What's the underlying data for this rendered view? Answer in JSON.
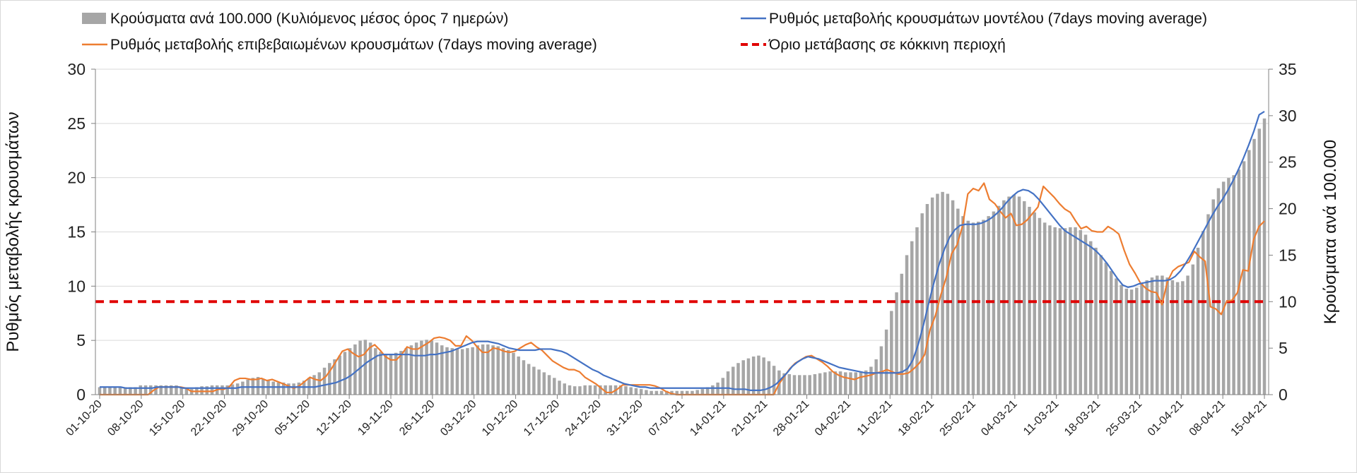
{
  "chart_data": {
    "type": "bar+line",
    "title": "",
    "xlabel": "",
    "ylabel_left": "Ρυθμός μεταβολής κρουσμάτων",
    "ylabel_right": "Κρούσματα ανά 100.000",
    "ylim_left": [
      0,
      30
    ],
    "ylim_right": [
      0,
      35
    ],
    "yticks_left": [
      "0",
      "5",
      "10",
      "15",
      "20",
      "25",
      "30"
    ],
    "yticks_right": [
      "0",
      "5",
      "10",
      "15",
      "20",
      "25",
      "30",
      "35"
    ],
    "grid": "horizontal",
    "legend_position": "top",
    "x_start": "01-10-20",
    "x_end": "15-04-21",
    "x_tick_labels": [
      "01-10-20",
      "08-10-20",
      "15-10-20",
      "22-10-20",
      "29-10-20",
      "05-11-20",
      "12-11-20",
      "19-11-20",
      "26-11-20",
      "03-12-20",
      "10-12-20",
      "17-12-20",
      "24-12-20",
      "31-12-20",
      "07-01-21",
      "14-01-21",
      "21-01-21",
      "28-01-21",
      "04-02-21",
      "11-02-21",
      "18-02-21",
      "25-02-21",
      "04-03-21",
      "11-03-21",
      "18-03-21",
      "25-03-21",
      "01-04-21",
      "08-04-21",
      "15-04-21"
    ],
    "series": [
      {
        "name": "Κρούσματα ανά 100.000 (Κυλιόμενος μέσος όρος 7 ημερών)",
        "kind": "bar",
        "axis": "right",
        "color": "#a6a6a6",
        "values": [
          0.8,
          0.8,
          0.8,
          0.8,
          0.8,
          0.8,
          0.8,
          0.8,
          1.0,
          1.0,
          1.0,
          1.0,
          1.0,
          1.0,
          1.0,
          1.0,
          0.7,
          0.7,
          0.6,
          0.8,
          0.9,
          0.9,
          1.0,
          1.0,
          1.0,
          1.0,
          1.1,
          1.2,
          1.4,
          1.6,
          1.8,
          1.9,
          1.7,
          1.5,
          1.4,
          1.3,
          1.3,
          1.2,
          1.2,
          1.3,
          1.5,
          1.8,
          2.1,
          2.4,
          2.9,
          3.4,
          3.8,
          4.2,
          4.6,
          5.0,
          5.4,
          5.8,
          5.9,
          5.6,
          5.0,
          4.6,
          4.4,
          4.4,
          4.5,
          4.7,
          5.0,
          5.3,
          5.6,
          5.8,
          5.9,
          5.8,
          5.6,
          5.3,
          5.1,
          5.0,
          4.9,
          4.9,
          5.0,
          5.1,
          5.3,
          5.4,
          5.4,
          5.3,
          5.2,
          5.0,
          4.8,
          4.5,
          4.1,
          3.7,
          3.3,
          3.0,
          2.7,
          2.4,
          2.1,
          1.8,
          1.5,
          1.2,
          1.0,
          0.9,
          0.9,
          1.0,
          1.0,
          1.0,
          1.0,
          1.0,
          1.0,
          1.0,
          1.0,
          0.9,
          0.8,
          0.7,
          0.6,
          0.5,
          0.4,
          0.4,
          0.4,
          0.4,
          0.4,
          0.4,
          0.4,
          0.4,
          0.4,
          0.5,
          0.6,
          0.8,
          1.0,
          1.3,
          1.8,
          2.5,
          3.0,
          3.4,
          3.7,
          3.9,
          4.1,
          4.2,
          4.0,
          3.6,
          3.1,
          2.6,
          2.3,
          2.2,
          2.1,
          2.1,
          2.1,
          2.1,
          2.2,
          2.3,
          2.4,
          2.5,
          2.5,
          2.5,
          2.4,
          2.4,
          2.4,
          2.5,
          2.6,
          3.0,
          3.8,
          5.2,
          7.0,
          9.0,
          11.0,
          13.0,
          15.0,
          16.5,
          18.0,
          19.5,
          20.5,
          21.2,
          21.6,
          21.8,
          21.6,
          20.9,
          20.0,
          19.2,
          18.7,
          18.5,
          18.6,
          18.8,
          19.2,
          19.7,
          20.3,
          20.9,
          21.3,
          21.5,
          21.3,
          20.8,
          20.2,
          19.6,
          19.0,
          18.5,
          18.2,
          18.0,
          17.9,
          17.9,
          18.0,
          18.0,
          17.7,
          17.2,
          16.5,
          15.8,
          15.0,
          14.2,
          13.3,
          12.5,
          11.8,
          11.4,
          11.3,
          11.5,
          11.9,
          12.3,
          12.6,
          12.8,
          12.8,
          12.6,
          12.3,
          12.1,
          12.2,
          12.8,
          14.0,
          15.8,
          17.6,
          19.4,
          21.0,
          22.2,
          22.9,
          23.3,
          23.6,
          24.2,
          25.1,
          26.3,
          27.5,
          28.6,
          29.7
        ]
      },
      {
        "name": "Ρυθμός μεταβολής κρουσμάτων μοντέλου (7days moving average)",
        "kind": "line",
        "axis": "left",
        "color": "#4472c4",
        "values": [
          0.7,
          0.7,
          0.7,
          0.7,
          0.7,
          0.6,
          0.6,
          0.6,
          0.6,
          0.6,
          0.6,
          0.7,
          0.7,
          0.7,
          0.7,
          0.7,
          0.6,
          0.6,
          0.6,
          0.6,
          0.6,
          0.6,
          0.6,
          0.6,
          0.6,
          0.6,
          0.6,
          0.7,
          0.7,
          0.7,
          0.7,
          0.7,
          0.7,
          0.7,
          0.7,
          0.7,
          0.7,
          0.7,
          0.7,
          0.7,
          0.7,
          0.7,
          0.8,
          0.9,
          1.0,
          1.1,
          1.3,
          1.5,
          1.8,
          2.2,
          2.6,
          3.0,
          3.3,
          3.6,
          3.7,
          3.7,
          3.7,
          3.7,
          3.7,
          3.7,
          3.6,
          3.6,
          3.6,
          3.7,
          3.7,
          3.8,
          3.9,
          4.0,
          4.2,
          4.4,
          4.6,
          4.8,
          4.9,
          4.9,
          4.9,
          4.8,
          4.7,
          4.5,
          4.3,
          4.2,
          4.1,
          4.1,
          4.1,
          4.1,
          4.2,
          4.2,
          4.2,
          4.1,
          4.0,
          3.8,
          3.5,
          3.2,
          2.9,
          2.6,
          2.3,
          2.1,
          1.8,
          1.6,
          1.4,
          1.2,
          1.0,
          0.9,
          0.8,
          0.7,
          0.7,
          0.6,
          0.6,
          0.6,
          0.6,
          0.6,
          0.6,
          0.6,
          0.6,
          0.6,
          0.6,
          0.6,
          0.6,
          0.6,
          0.6,
          0.6,
          0.6,
          0.5,
          0.5,
          0.5,
          0.4,
          0.4,
          0.4,
          0.5,
          0.7,
          1.0,
          1.5,
          2.0,
          2.6,
          3.0,
          3.3,
          3.5,
          3.4,
          3.3,
          3.1,
          2.9,
          2.7,
          2.5,
          2.4,
          2.3,
          2.2,
          2.1,
          2.0,
          2.0,
          2.0,
          2.0,
          2.0,
          2.0,
          2.0,
          2.1,
          2.4,
          3.2,
          4.6,
          6.4,
          8.4,
          10.3,
          12.0,
          13.4,
          14.5,
          15.2,
          15.6,
          15.7,
          15.7,
          15.7,
          15.8,
          16.0,
          16.3,
          16.7,
          17.2,
          17.8,
          18.3,
          18.7,
          18.9,
          18.8,
          18.5,
          18.0,
          17.4,
          16.8,
          16.2,
          15.6,
          15.1,
          14.8,
          14.5,
          14.2,
          13.9,
          13.6,
          13.2,
          12.7,
          12.1,
          11.4,
          10.7,
          10.1,
          9.9,
          10.0,
          10.2,
          10.3,
          10.4,
          10.5,
          10.5,
          10.5,
          10.6,
          10.9,
          11.4,
          12.1,
          12.9,
          13.8,
          14.7,
          15.6,
          16.5,
          17.3,
          18.0,
          18.8,
          19.7,
          20.7,
          21.8,
          23.0,
          24.3,
          25.8,
          26.1
        ]
      },
      {
        "name": "Ρυθμός μεταβολής επιβεβαιωμένων κρουσμάτων (7days moving average)",
        "kind": "line",
        "axis": "left",
        "color": "#ed7d31",
        "values": [
          0.0,
          0.0,
          0.0,
          0.0,
          0.0,
          0.0,
          0.0,
          0.0,
          0.0,
          0.0,
          0.4,
          0.7,
          0.7,
          0.7,
          0.7,
          0.7,
          0.6,
          0.3,
          0.3,
          0.3,
          0.3,
          0.3,
          0.5,
          0.5,
          0.7,
          1.3,
          1.5,
          1.5,
          1.4,
          1.4,
          1.5,
          1.3,
          1.4,
          1.2,
          1.0,
          0.8,
          0.6,
          0.8,
          1.2,
          1.6,
          1.4,
          1.3,
          1.7,
          2.4,
          3.2,
          4.0,
          4.2,
          3.8,
          3.5,
          3.7,
          4.3,
          4.6,
          4.1,
          3.5,
          3.2,
          3.2,
          3.7,
          4.4,
          4.2,
          4.2,
          4.5,
          4.8,
          5.2,
          5.3,
          5.2,
          5.0,
          4.5,
          4.5,
          5.4,
          5.0,
          4.4,
          3.9,
          3.9,
          4.3,
          4.2,
          4.0,
          3.9,
          4.0,
          4.3,
          4.6,
          4.8,
          4.4,
          4.1,
          3.6,
          3.1,
          2.8,
          2.5,
          2.3,
          2.3,
          2.1,
          1.6,
          1.3,
          1.0,
          0.6,
          0.2,
          0.2,
          0.5,
          0.9,
          0.9,
          0.9,
          0.9,
          0.9,
          0.9,
          0.8,
          0.6,
          0.3,
          0.1,
          0.0,
          0.0,
          0.0,
          0.0,
          0.0,
          0.0,
          0.0,
          0.0,
          0.0,
          0.0,
          0.0,
          0.0,
          0.0,
          0.0,
          0.0,
          0.0,
          0.0,
          0.0,
          0.0,
          1.0,
          1.7,
          2.4,
          2.9,
          3.2,
          3.5,
          3.6,
          3.3,
          3.0,
          2.6,
          2.1,
          1.8,
          1.6,
          1.5,
          1.4,
          1.6,
          1.7,
          1.8,
          2.0,
          2.1,
          2.3,
          2.1,
          1.9,
          1.9,
          2.0,
          2.4,
          2.9,
          3.7,
          6.0,
          7.3,
          9.2,
          10.8,
          13.0,
          13.8,
          15.5,
          18.5,
          19.0,
          18.8,
          19.5,
          18.0,
          17.6,
          16.9,
          16.3,
          16.7,
          15.6,
          15.7,
          16.1,
          16.7,
          17.3,
          19.2,
          18.7,
          18.2,
          17.6,
          17.1,
          16.8,
          16.0,
          15.3,
          15.5,
          15.1,
          15.0,
          15.0,
          15.5,
          15.2,
          14.8,
          13.3,
          12.0,
          11.2,
          10.3,
          9.8,
          9.5,
          9.4,
          8.3,
          10.4,
          11.4,
          11.8,
          12.0,
          12.2,
          13.2,
          12.7,
          12.3,
          8.1,
          7.9,
          7.4,
          8.6,
          8.7,
          9.4,
          11.5,
          11.4,
          14.3,
          15.5,
          16.0
        ]
      },
      {
        "name": "Όριο μετάβασης σε κόκκινη περιοχή",
        "kind": "threshold",
        "axis": "right",
        "color": "#e00000",
        "value": 10,
        "from": "01-10-20",
        "to": "15-04-21"
      }
    ]
  },
  "colors": {
    "bars": "#a6a6a6",
    "model_line": "#4472c4",
    "confirmed_line": "#ed7d31",
    "threshold": "#e00000",
    "grid": "#d9d9d9"
  }
}
